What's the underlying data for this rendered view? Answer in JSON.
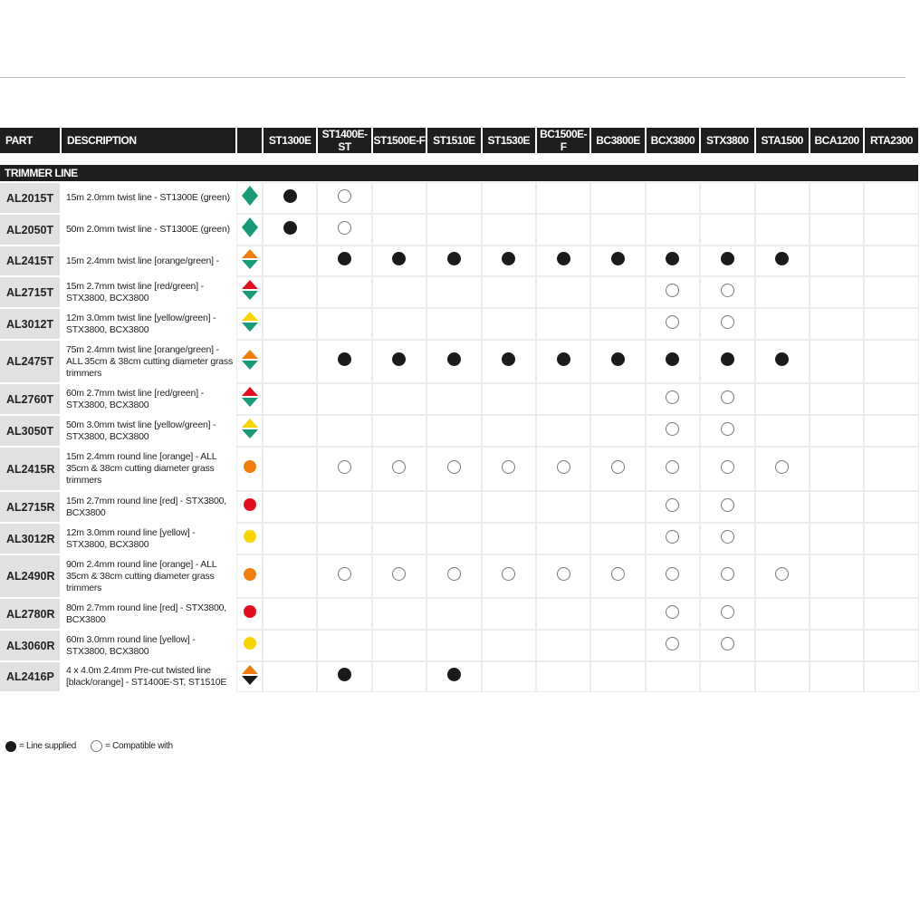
{
  "headers": {
    "part": "PART",
    "description": "DESCRIPTION",
    "models": [
      "ST1300E",
      "ST1400E-ST",
      "ST1500E-F",
      "ST1510E",
      "ST1530E",
      "BC1500E-F",
      "BC3800E",
      "BCX3800",
      "STX3800",
      "STA1500",
      "BCA1200",
      "RTA2300"
    ]
  },
  "section": "TRIMMER LINE",
  "colors": {
    "green": "#1a9a78",
    "orange": "#ef7d10",
    "red": "#e0101e",
    "yellow": "#f8d500",
    "black": "#1b1b1b"
  },
  "rows": [
    {
      "part": "AL2015T",
      "description": "15m 2.0mm twist line - ST1300E (green)",
      "icon": "diamond:green",
      "marks": [
        "F",
        "O",
        "",
        "",
        "",
        "",
        "",
        "",
        "",
        "",
        "",
        ""
      ]
    },
    {
      "part": "AL2050T",
      "description": "50m 2.0mm twist line - ST1300E (green)",
      "icon": "diamond:green",
      "marks": [
        "F",
        "O",
        "",
        "",
        "",
        "",
        "",
        "",
        "",
        "",
        "",
        ""
      ]
    },
    {
      "part": "AL2415T",
      "description": "15m 2.4mm twist line [orange/green] -",
      "icon": "split:orange:green",
      "marks": [
        "",
        "F",
        "F",
        "F",
        "F",
        "F",
        "F",
        "F",
        "F",
        "F",
        "",
        ""
      ]
    },
    {
      "part": "AL2715T",
      "description": "15m 2.7mm twist line [red/green] - STX3800, BCX3800",
      "icon": "split:red:green",
      "marks": [
        "",
        "",
        "",
        "",
        "",
        "",
        "",
        "O",
        "O",
        "",
        "",
        ""
      ]
    },
    {
      "part": "AL3012T",
      "description": "12m 3.0mm twist line [yellow/green] - STX3800, BCX3800",
      "icon": "split:yellow:green",
      "marks": [
        "",
        "",
        "",
        "",
        "",
        "",
        "",
        "O",
        "O",
        "",
        "",
        ""
      ]
    },
    {
      "part": "AL2475T",
      "description": "75m 2.4mm twist line [orange/green] - ALL 35cm & 38cm cutting diameter grass trimmers",
      "icon": "split:orange:green",
      "marks": [
        "",
        "F",
        "F",
        "F",
        "F",
        "F",
        "F",
        "F",
        "F",
        "F",
        "",
        ""
      ]
    },
    {
      "part": "AL2760T",
      "description": "60m 2.7mm twist line [red/green] - STX3800, BCX3800",
      "icon": "split:red:green",
      "marks": [
        "",
        "",
        "",
        "",
        "",
        "",
        "",
        "O",
        "O",
        "",
        "",
        ""
      ]
    },
    {
      "part": "AL3050T",
      "description": "50m 3.0mm twist line [yellow/green] - STX3800, BCX3800",
      "icon": "split:yellow:green",
      "marks": [
        "",
        "",
        "",
        "",
        "",
        "",
        "",
        "O",
        "O",
        "",
        "",
        ""
      ]
    },
    {
      "part": "AL2415R",
      "description": "15m 2.4mm round line [orange] - ALL 35cm & 38cm cutting diameter grass trimmers",
      "icon": "circle:orange",
      "marks": [
        "",
        "O",
        "O",
        "O",
        "O",
        "O",
        "O",
        "O",
        "O",
        "O",
        "",
        ""
      ]
    },
    {
      "part": "AL2715R",
      "description": "15m 2.7mm round line [red] - STX3800, BCX3800",
      "icon": "circle:red",
      "marks": [
        "",
        "",
        "",
        "",
        "",
        "",
        "",
        "O",
        "O",
        "",
        "",
        ""
      ]
    },
    {
      "part": "AL3012R",
      "description": "12m 3.0mm round line [yellow] - STX3800, BCX3800",
      "icon": "circle:yellow",
      "marks": [
        "",
        "",
        "",
        "",
        "",
        "",
        "",
        "O",
        "O",
        "",
        "",
        ""
      ]
    },
    {
      "part": "AL2490R",
      "description": "90m 2.4mm round line [orange] - ALL 35cm & 38cm cutting diameter grass trimmers",
      "icon": "circle:orange",
      "marks": [
        "",
        "O",
        "O",
        "O",
        "O",
        "O",
        "O",
        "O",
        "O",
        "O",
        "",
        ""
      ]
    },
    {
      "part": "AL2780R",
      "description": "80m 2.7mm round line [red] - STX3800, BCX3800",
      "icon": "circle:red",
      "marks": [
        "",
        "",
        "",
        "",
        "",
        "",
        "",
        "O",
        "O",
        "",
        "",
        ""
      ]
    },
    {
      "part": "AL3060R",
      "description": "60m 3.0mm round line [yellow] - STX3800, BCX3800",
      "icon": "circle:yellow",
      "marks": [
        "",
        "",
        "",
        "",
        "",
        "",
        "",
        "O",
        "O",
        "",
        "",
        ""
      ]
    },
    {
      "part": "AL2416P",
      "description": "4 x 4.0m 2.4mm  Pre-cut twisted line [black/orange] - ST1400E-ST, ST1510E",
      "icon": "split:orange:black",
      "marks": [
        "",
        "F",
        "",
        "F",
        "",
        "",
        "",
        "",
        "",
        "",
        "",
        ""
      ]
    }
  ],
  "legend": {
    "supplied": "= Line supplied",
    "compatible": "= Compatible with"
  }
}
